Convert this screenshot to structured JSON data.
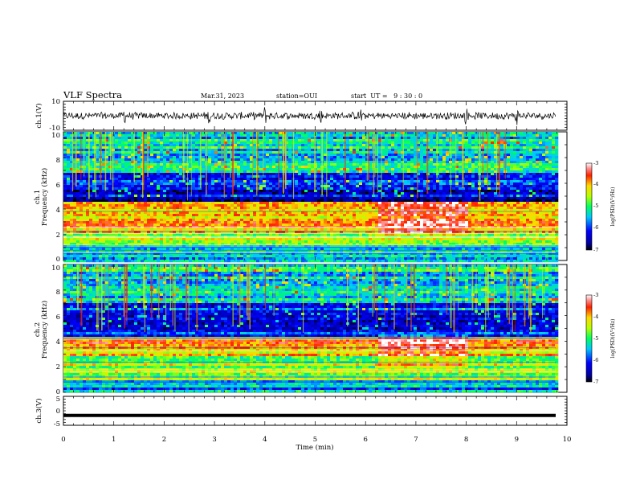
{
  "header": {
    "title": "VLF Spectra",
    "date": "Mar.31, 2023",
    "station": "station=OUI",
    "start": "start  UT =   9 : 30 : 0"
  },
  "chart_data": [
    {
      "type": "line",
      "name": "ch1-waveform",
      "ylabel": "ch.1(V)",
      "ylim": [
        -10,
        10
      ],
      "yticks": [
        "10",
        "-10"
      ],
      "x_range_min": [
        0,
        9.8
      ],
      "description_values": "dense VLF waveform, amplitude mostly within about -3 to 3 V with spikes near 2.9, 5.1, 5.9, 8.0, 9.0 min"
    },
    {
      "type": "heatmap",
      "name": "ch1-spectrogram",
      "xlabel": "Time (min)",
      "ylabel_top": "ch.1",
      "ylabel": "Frequency (kHz)",
      "xlim": [
        0,
        10
      ],
      "ylim": [
        0,
        10
      ],
      "yticks": [
        "0",
        "2",
        "4",
        "6",
        "8",
        "10"
      ],
      "colorbar_label": "log(PSD)(V²/Hz)",
      "colorbar_range": [
        -7,
        -3
      ],
      "colorbar_ticks": [
        "-3",
        "-4",
        "-5",
        "-6",
        "-7"
      ],
      "bands": [
        {
          "from_khz": 0.0,
          "to_khz": 1.3,
          "level": -5.4
        },
        {
          "from_khz": 1.3,
          "to_khz": 2.3,
          "level": -4.6
        },
        {
          "from_khz": 2.3,
          "to_khz": 4.6,
          "level": -4.0
        },
        {
          "from_khz": 4.6,
          "to_khz": 5.0,
          "level": -6.8
        },
        {
          "from_khz": 5.0,
          "to_khz": 7.0,
          "level": -6.2
        },
        {
          "from_khz": 7.0,
          "to_khz": 10.0,
          "level": -5.2
        }
      ],
      "enhanced_interval_min": [
        6.2,
        8.0
      ]
    },
    {
      "type": "heatmap",
      "name": "ch2-spectrogram",
      "xlabel": "Time (min)",
      "ylabel_top": "ch.2",
      "ylabel": "Frequency (kHz)",
      "xlim": [
        0,
        10
      ],
      "ylim": [
        0,
        10
      ],
      "yticks": [
        "0",
        "2",
        "4",
        "6",
        "8",
        "10"
      ],
      "colorbar_label": "log(PSD)(V²/Hz)",
      "colorbar_range": [
        -7,
        -3
      ],
      "colorbar_ticks": [
        "-3",
        "-4",
        "-5",
        "-6",
        "-7"
      ],
      "bands": [
        {
          "from_khz": 0.0,
          "to_khz": 1.0,
          "level": -5.6
        },
        {
          "from_khz": 1.0,
          "to_khz": 3.0,
          "level": -4.6
        },
        {
          "from_khz": 3.0,
          "to_khz": 4.5,
          "level": -4.0
        },
        {
          "from_khz": 4.5,
          "to_khz": 7.0,
          "level": -6.0
        },
        {
          "from_khz": 7.0,
          "to_khz": 10.0,
          "level": -5.3
        }
      ],
      "enhanced_interval_min": [
        6.2,
        8.0
      ]
    },
    {
      "type": "line",
      "name": "ch3-waveform",
      "ylabel": "ch.3(V)",
      "ylim": [
        -5,
        5
      ],
      "yticks": [
        "5",
        "0",
        "-5"
      ],
      "constant_value_v": -1.6
    }
  ],
  "x_axis": {
    "label": "Time (min)",
    "ticks": [
      "0",
      "1",
      "2",
      "3",
      "4",
      "5",
      "6",
      "7",
      "8",
      "9",
      "10"
    ]
  }
}
